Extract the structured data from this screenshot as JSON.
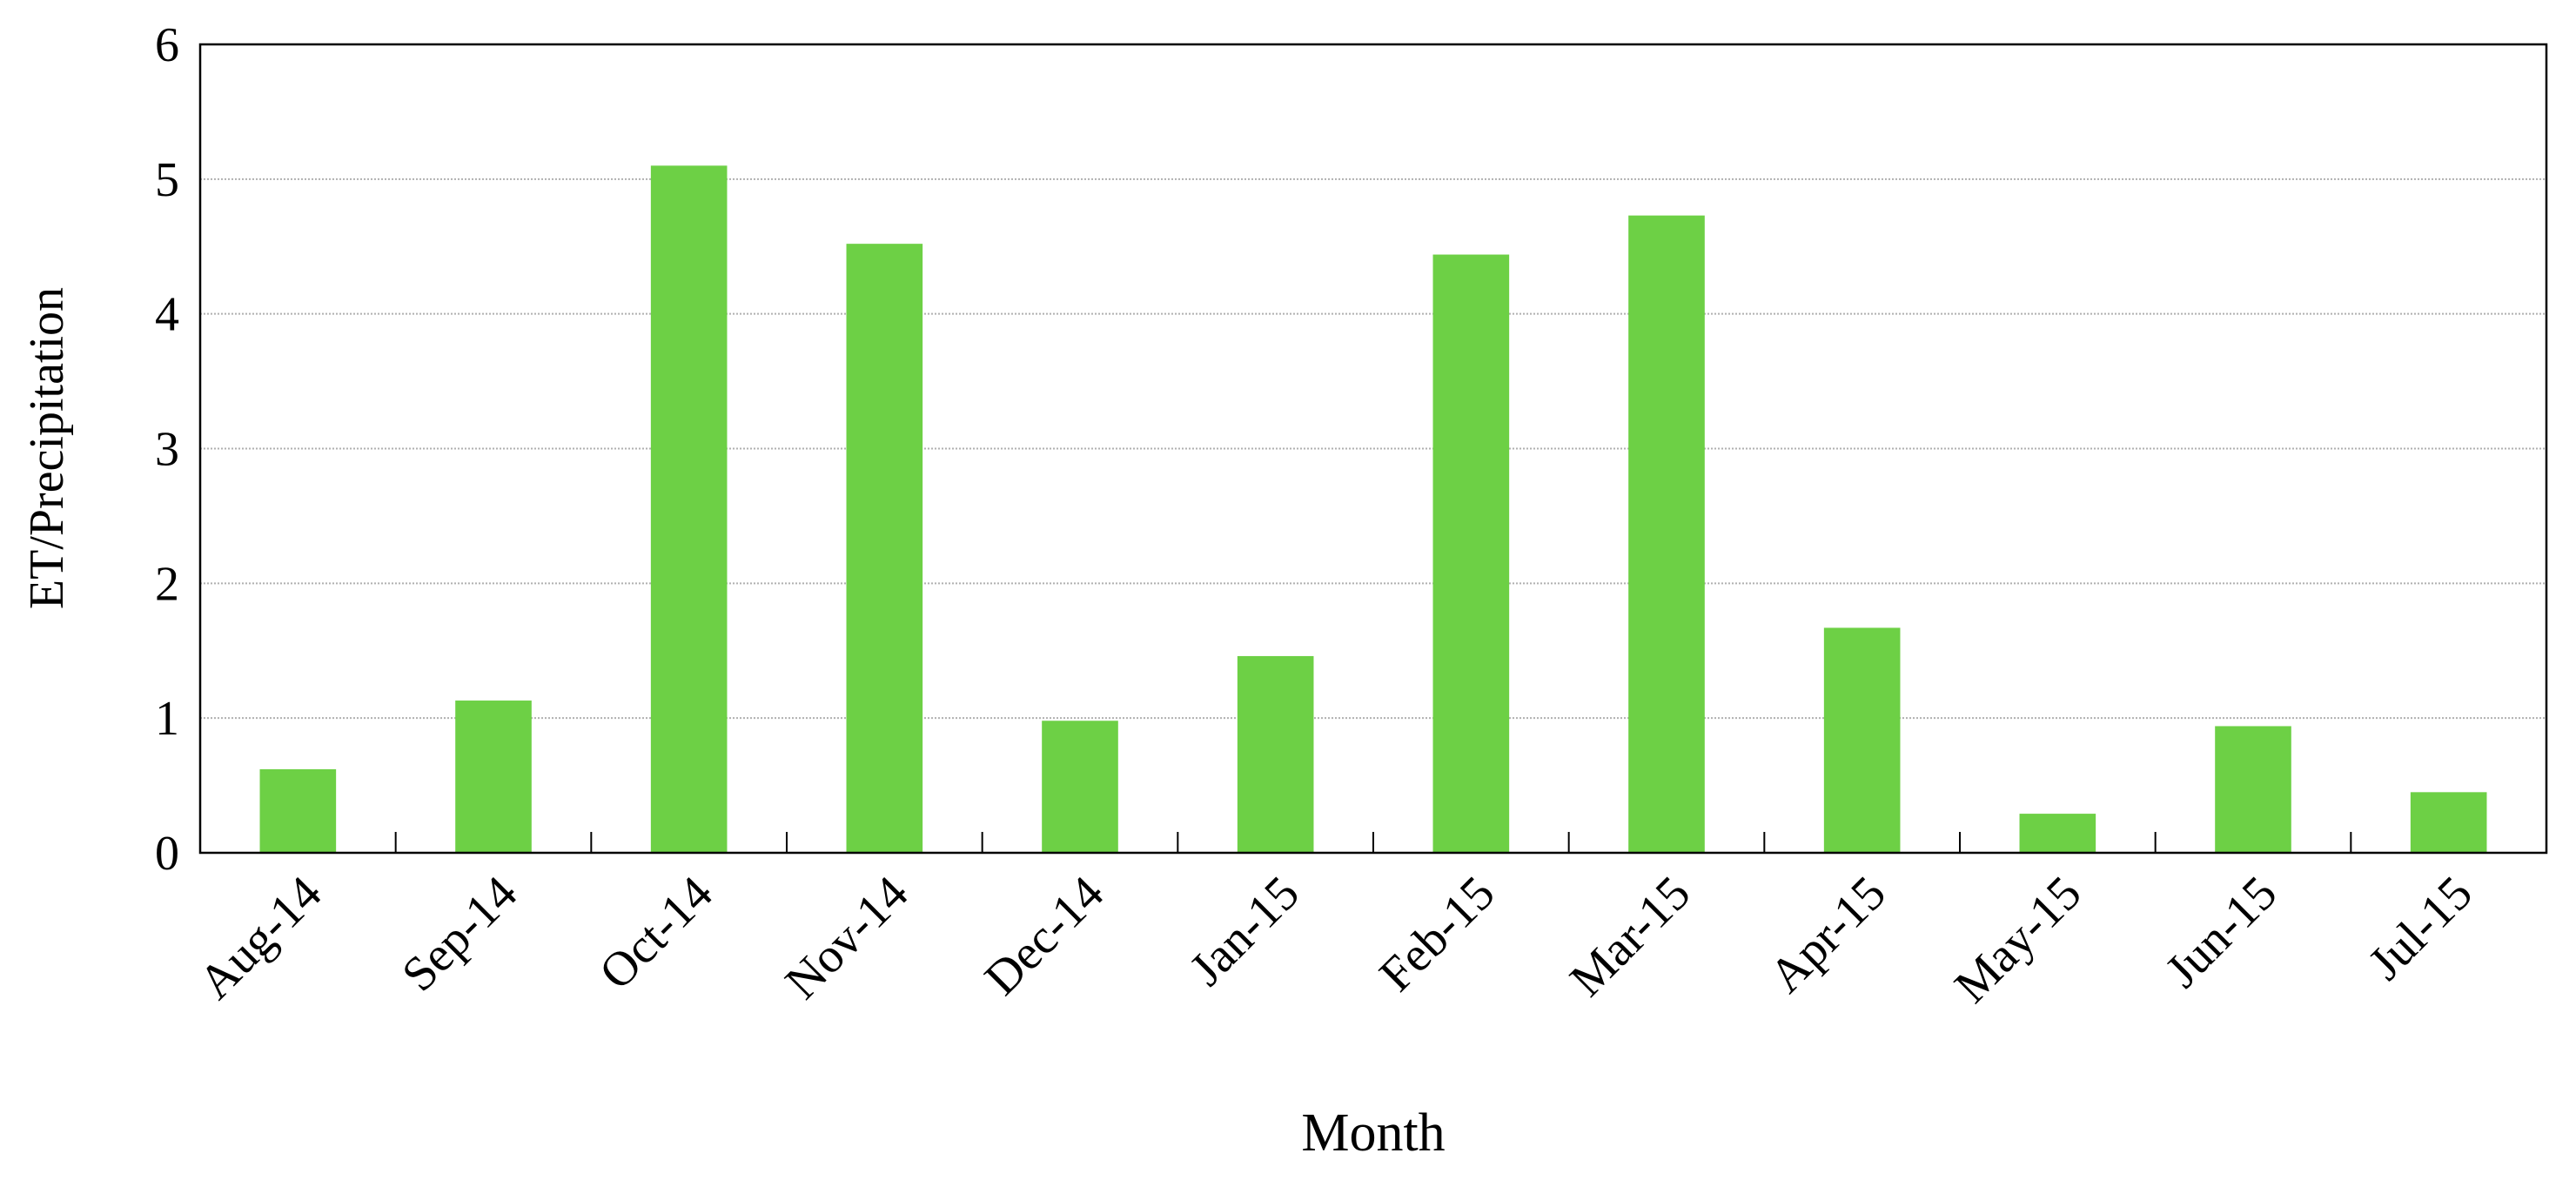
{
  "chart_data": {
    "type": "bar",
    "x_label": "Month",
    "y_label": "ET/Precipitation",
    "categories": [
      "Aug-14",
      "Sep-14",
      "Oct-14",
      "Nov-14",
      "Dec-14",
      "Jan-15",
      "Feb-15",
      "Mar-15",
      "Apr-15",
      "May-15",
      "Jun-15",
      "Jul-15"
    ],
    "values": [
      0.62,
      1.13,
      5.1,
      4.52,
      0.98,
      1.46,
      4.44,
      4.73,
      1.67,
      0.29,
      0.94,
      0.45
    ],
    "color": "#6dd045",
    "ylim": [
      0,
      6
    ],
    "yticks": [
      0,
      1,
      2,
      3,
      4,
      5,
      6
    ],
    "grid": true
  }
}
